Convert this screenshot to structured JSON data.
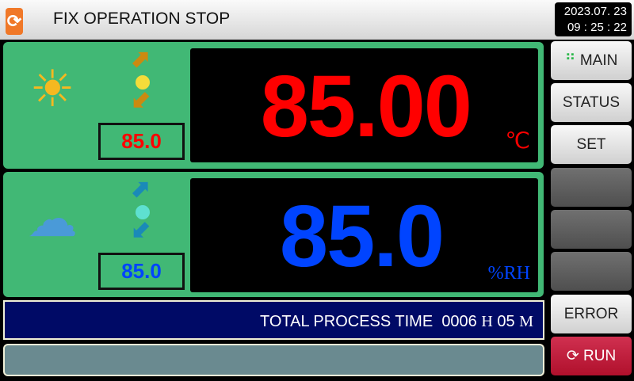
{
  "header": {
    "title": "FIX OPERATION STOP",
    "date": "2023.07. 23",
    "time": "09 : 25 : 22",
    "logo_icon": "refresh-icon"
  },
  "temperature": {
    "setpoint": "85.0",
    "present": "85.00",
    "unit": "℃",
    "color": "#ff0000",
    "icon": "thermometer-sun-icon"
  },
  "humidity": {
    "setpoint": "85.0",
    "present": "85.0",
    "unit": "%RH",
    "color": "#0044ff",
    "icon": "rain-cloud-icon"
  },
  "side_buttons": {
    "main": "MAIN",
    "status": "STATUS",
    "set": "SET",
    "error": "ERROR",
    "run": "RUN"
  },
  "process_time": {
    "label": "TOTAL PROCESS TIME",
    "hours": "0006",
    "h_unit": "H",
    "minutes": "05",
    "m_unit": "M"
  },
  "message": ""
}
